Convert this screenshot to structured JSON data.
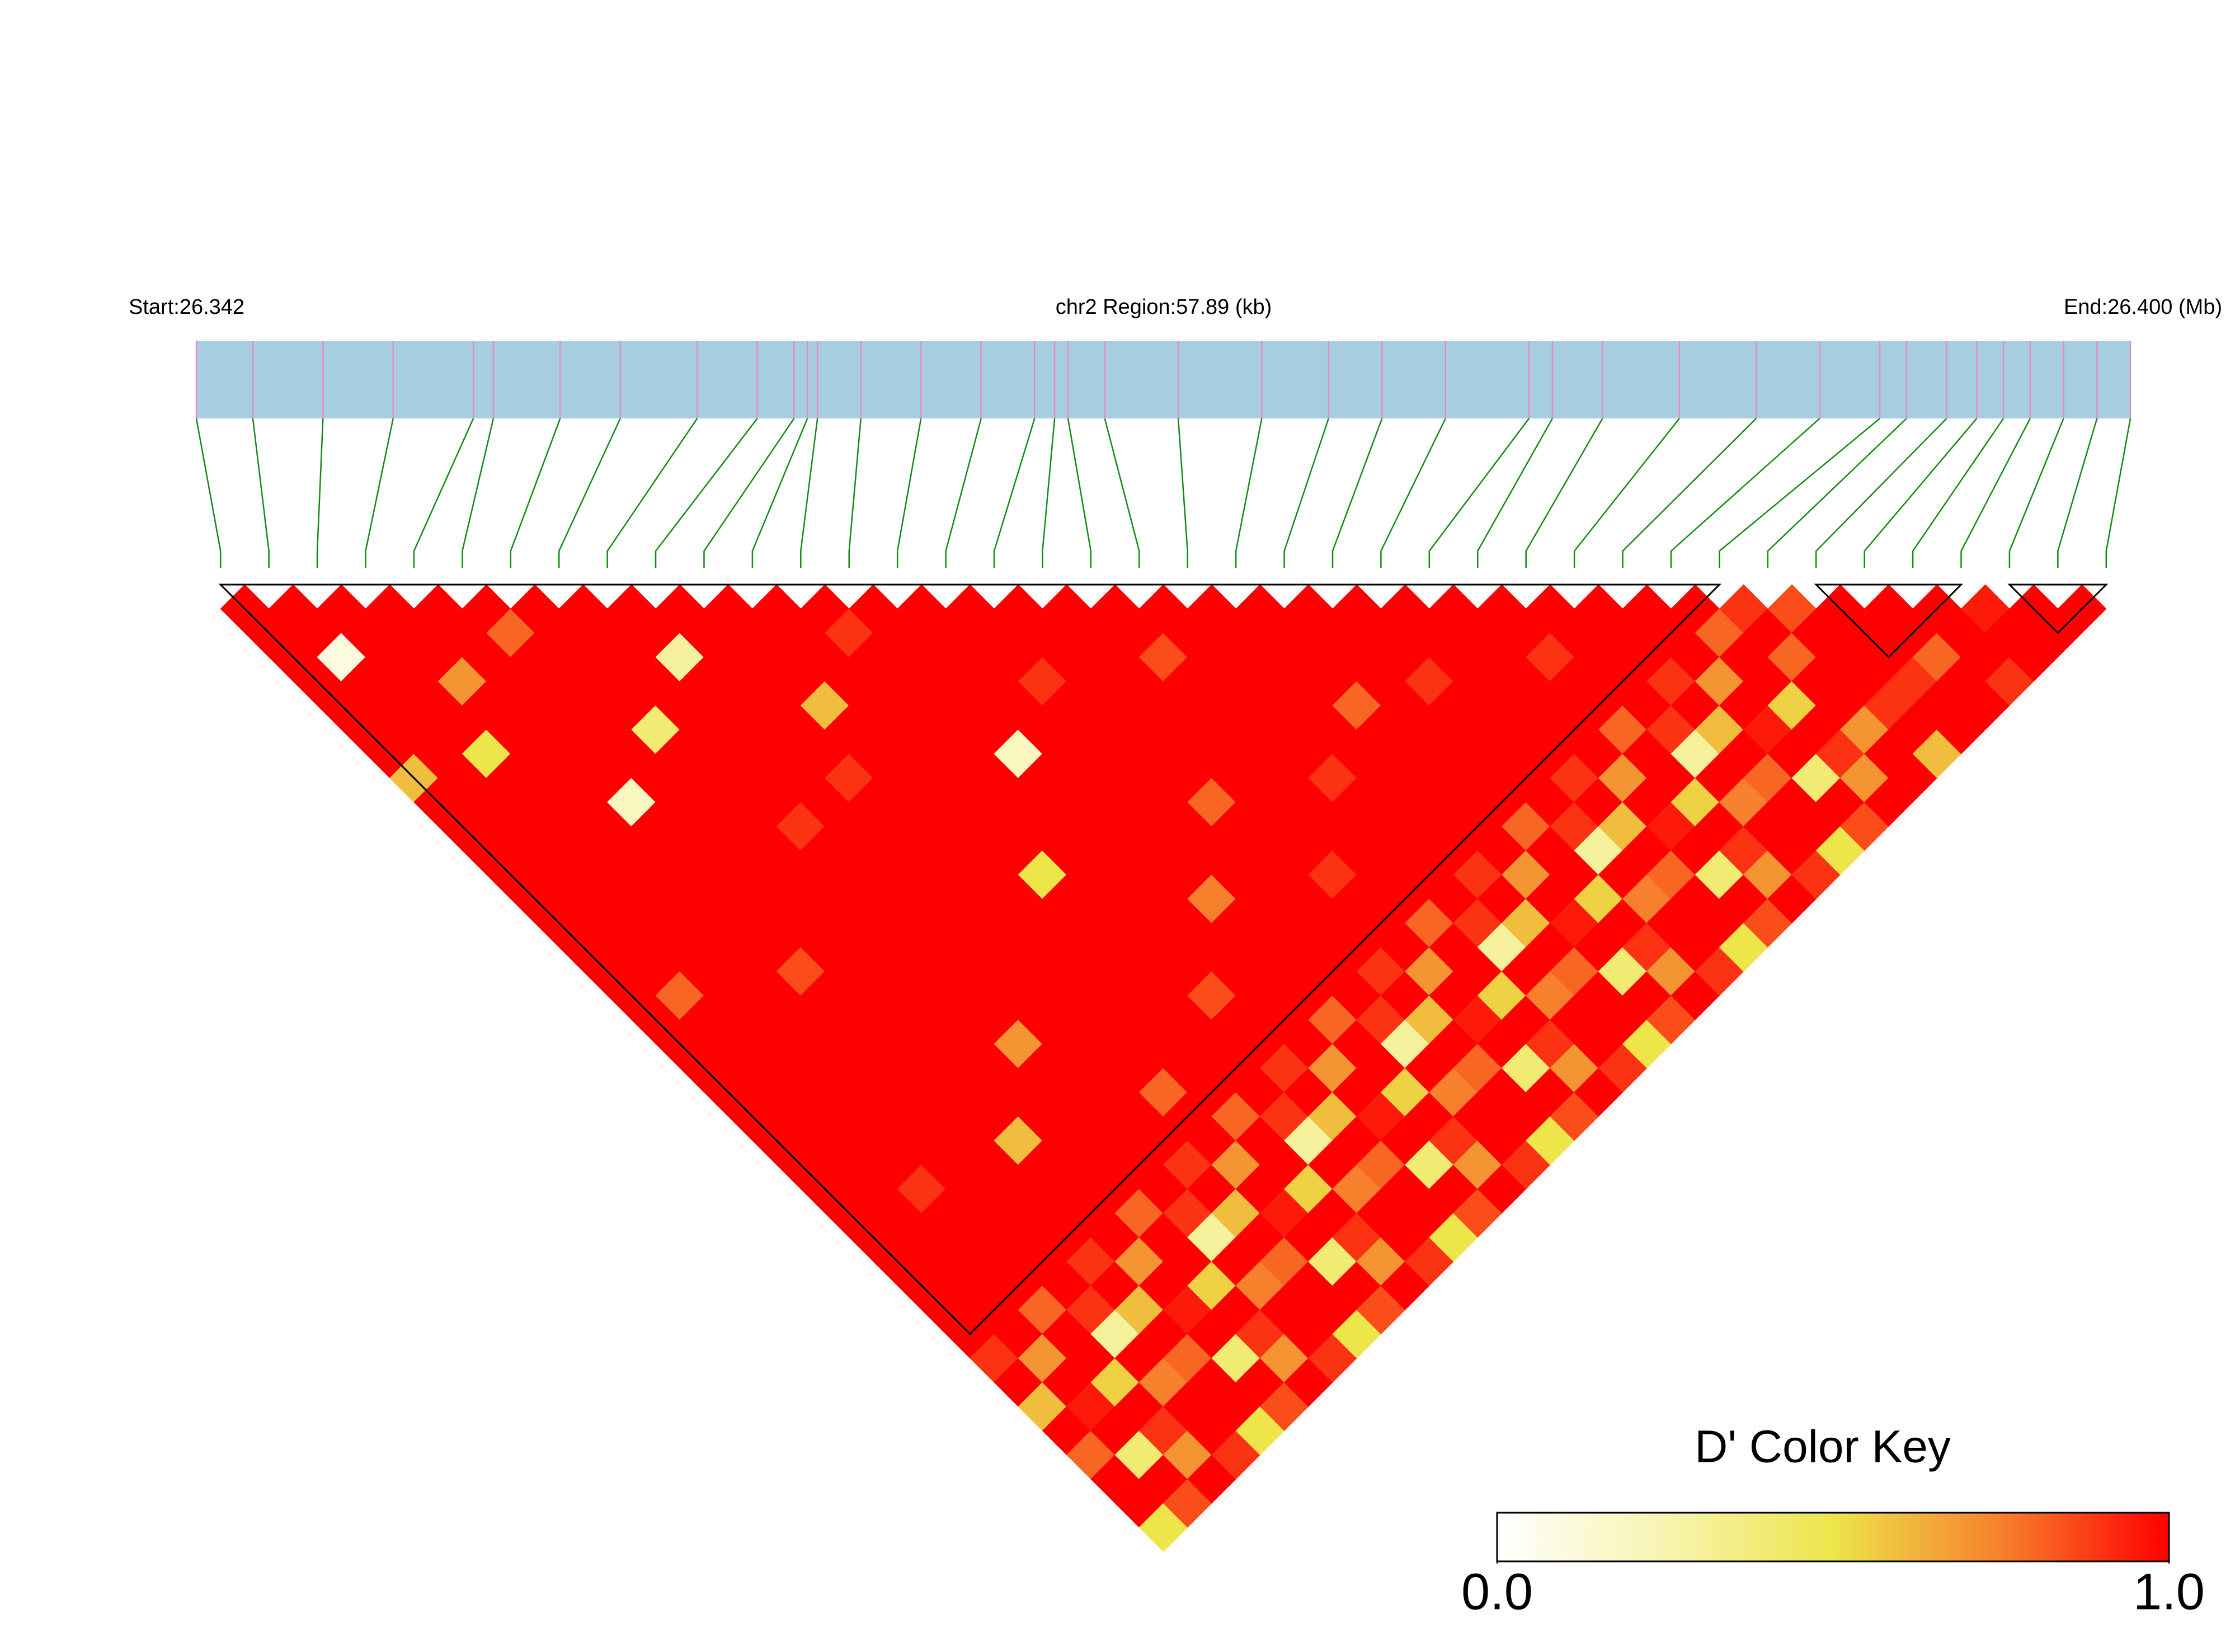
{
  "chart_data": {
    "type": "ld_heatmap",
    "start_label": "Start:26.342",
    "region_label": "chr2 Region:57.89 (kb)",
    "end_label": "End:26.400 (Mb)",
    "xlim": [
      26.34211,
      26.4
    ],
    "positions": [
      26.34211,
      26.3438,
      26.3459,
      26.348,
      26.3504,
      26.351,
      26.353,
      26.3548,
      26.3571,
      26.3589,
      26.36,
      26.3604,
      26.3607,
      26.362,
      26.3638,
      26.3656,
      26.3672,
      26.3678,
      26.3682,
      26.3693,
      26.3715,
      26.374,
      26.376,
      26.3776,
      26.3795,
      26.382,
      26.3827,
      26.3842,
      26.3865,
      26.3888,
      26.3907,
      26.3925,
      26.3933,
      26.3945,
      26.3954,
      26.3962,
      26.397,
      26.398,
      26.399,
      26.4
    ],
    "dprime": [
      [
        1,
        1,
        1,
        1,
        1,
        1,
        1,
        0.6,
        1,
        1,
        1,
        1,
        1,
        1,
        1,
        1,
        1,
        1,
        1,
        1,
        1,
        1,
        1,
        1,
        1,
        1,
        1,
        1,
        1,
        1,
        1,
        0.9,
        1,
        0.6,
        1,
        0.8,
        1,
        1,
        0.5
      ],
      [
        1,
        1,
        0.1,
        1,
        1,
        1,
        1,
        1,
        1,
        1,
        1,
        1,
        1,
        1,
        1,
        1,
        0.8,
        1,
        1,
        1,
        1,
        1,
        1,
        1,
        1,
        1,
        1,
        1,
        1,
        1,
        1,
        0.7,
        1,
        0.95,
        1,
        0.4,
        1,
        0.85
      ],
      [
        1,
        1,
        1,
        1,
        1,
        1,
        0.5,
        1,
        1,
        1,
        1,
        1,
        1,
        1,
        1,
        1,
        1,
        1,
        1,
        1,
        1,
        1,
        1,
        1,
        0.9,
        1,
        1,
        1,
        1,
        0.8,
        1,
        1,
        0.55,
        1,
        0.9,
        0.7,
        1
      ],
      [
        1,
        1,
        1,
        0.7,
        1,
        1,
        1,
        1,
        1,
        1,
        1,
        1,
        1,
        1,
        1,
        1,
        1,
        1,
        1,
        1,
        1,
        1,
        1,
        1,
        1,
        1,
        1,
        1,
        1,
        0.9,
        0.3,
        1,
        0.75,
        1,
        1,
        0.9
      ],
      [
        1,
        1,
        1,
        1,
        1,
        1,
        1,
        1,
        0.2,
        1,
        1,
        1,
        1,
        1,
        1,
        0.85,
        1,
        1,
        1,
        1,
        1,
        1,
        1,
        1,
        1,
        1,
        1,
        0.9,
        1,
        0.6,
        1,
        0.8,
        1,
        1,
        0.5
      ],
      [
        1,
        0.8,
        1,
        1,
        1,
        1,
        1,
        1,
        1,
        1,
        1,
        1,
        1,
        1,
        1,
        1,
        1,
        1,
        1,
        1,
        1,
        1,
        0.6,
        1,
        1,
        1,
        1,
        0.7,
        1,
        0.95,
        1,
        0.4,
        1,
        0.85
      ],
      [
        1,
        1,
        1,
        1,
        1,
        0.4,
        1,
        1,
        1,
        1,
        1,
        1,
        1,
        1,
        1,
        1,
        1,
        1,
        1,
        1,
        1,
        1,
        1,
        1,
        1,
        0.8,
        1,
        1,
        0.55,
        1,
        0.9,
        0.7,
        1
      ],
      [
        1,
        1,
        1,
        1,
        1,
        1,
        1,
        1,
        1,
        0.9,
        1,
        1,
        1,
        1,
        1,
        1,
        1,
        1,
        0.7,
        1,
        1,
        1,
        1,
        1,
        1,
        0.9,
        0.3,
        1,
        0.75,
        1,
        1,
        0.9
      ],
      [
        1,
        1,
        0.3,
        1,
        1,
        1,
        1,
        1,
        1,
        1,
        1,
        1,
        1,
        1,
        1,
        1,
        1,
        1,
        1,
        1,
        1,
        1,
        1,
        0.9,
        1,
        0.6,
        1,
        0.8,
        1,
        1,
        0.5
      ],
      [
        1,
        1,
        1,
        1,
        1,
        1,
        1,
        0.9,
        1,
        1,
        1,
        1,
        1,
        1,
        1,
        1,
        1,
        1,
        1,
        1,
        0.8,
        1,
        1,
        0.7,
        1,
        0.95,
        1,
        0.4,
        1,
        0.85
      ],
      [
        1,
        1,
        1,
        1,
        0.6,
        1,
        1,
        1,
        1,
        1,
        1,
        1,
        1,
        1,
        1,
        1,
        1,
        1,
        1,
        1,
        1,
        0.8,
        1,
        1,
        0.55,
        1,
        0.9,
        0.7,
        1
      ],
      [
        1,
        1,
        1,
        1,
        1,
        1,
        1,
        1,
        1,
        1,
        1,
        0.5,
        1,
        1,
        1,
        1,
        1,
        1,
        1,
        1,
        1,
        0.9,
        0.3,
        1,
        0.75,
        1,
        1,
        0.9
      ],
      [
        1,
        0.9,
        1,
        1,
        1,
        1,
        1,
        1,
        1,
        1,
        1,
        1,
        1,
        1,
        1,
        1,
        0.85,
        1,
        1,
        0.9,
        1,
        0.6,
        1,
        0.8,
        1,
        1,
        0.5
      ],
      [
        1,
        1,
        1,
        1,
        1,
        1,
        0.2,
        1,
        1,
        1,
        1,
        1,
        1,
        1,
        1,
        1,
        1,
        1,
        1,
        0.7,
        1,
        0.95,
        1,
        0.4,
        1,
        0.85
      ],
      [
        1,
        1,
        1,
        1,
        1,
        1,
        1,
        1,
        1,
        1,
        1,
        1,
        0.75,
        1,
        1,
        1,
        1,
        0.8,
        1,
        1,
        0.55,
        1,
        0.9,
        0.7,
        1
      ],
      [
        1,
        1,
        1,
        0.9,
        1,
        1,
        1,
        1,
        1,
        1,
        1,
        1,
        1,
        1,
        1,
        1,
        1,
        0.9,
        0.3,
        1,
        0.75,
        1,
        1,
        0.9
      ],
      [
        1,
        1,
        1,
        1,
        1,
        1,
        1,
        1,
        0.8,
        1,
        1,
        1,
        1,
        1,
        1,
        0.9,
        1,
        0.6,
        1,
        0.8,
        1,
        1,
        0.5
      ],
      [
        1,
        1,
        1,
        1,
        1,
        1,
        1,
        1,
        1,
        1,
        1,
        0.9,
        1,
        1,
        1,
        0.7,
        1,
        0.95,
        1,
        0.4,
        1,
        0.85
      ],
      [
        1,
        1,
        0.85,
        1,
        1,
        1,
        1,
        1,
        1,
        1,
        1,
        1,
        1,
        0.8,
        1,
        1,
        0.55,
        1,
        0.9,
        0.7,
        1
      ],
      [
        1,
        1,
        1,
        1,
        1,
        1,
        1,
        0.9,
        1,
        1,
        1,
        1,
        1,
        0.9,
        0.3,
        1,
        0.75,
        1,
        1,
        0.9
      ],
      [
        1,
        1,
        1,
        1,
        1,
        1,
        1,
        1,
        1,
        1,
        1,
        0.9,
        1,
        0.6,
        1,
        0.8,
        1,
        1,
        0.5
      ],
      [
        1,
        1,
        1,
        1,
        0.8,
        1,
        1,
        1,
        1,
        1,
        1,
        0.7,
        1,
        0.95,
        1,
        0.4,
        1,
        0.85
      ],
      [
        1,
        1,
        1,
        1,
        1,
        1,
        1,
        1,
        1,
        0.8,
        1,
        1,
        0.55,
        1,
        0.9,
        0.7,
        1
      ],
      [
        1,
        1,
        1,
        0.9,
        1,
        1,
        1,
        1,
        1,
        0.9,
        0.3,
        1,
        0.75,
        1,
        1,
        0.9
      ],
      [
        1,
        1,
        1,
        1,
        1,
        1,
        1,
        0.9,
        1,
        0.6,
        1,
        0.8,
        1,
        1,
        0.5
      ],
      [
        1,
        1,
        1,
        1,
        1,
        1,
        1,
        0.7,
        1,
        0.95,
        1,
        0.4,
        1,
        0.85
      ],
      [
        1,
        1,
        0.9,
        1,
        1,
        0.8,
        1,
        1,
        0.55,
        1,
        0.9,
        0.7,
        1
      ],
      [
        1,
        1,
        1,
        1,
        1,
        0.9,
        0.3,
        1,
        0.75,
        1,
        1,
        0.9
      ],
      [
        1,
        1,
        1,
        0.9,
        1,
        0.6,
        1,
        0.8,
        1,
        1,
        0.5
      ],
      [
        1,
        1,
        1,
        0.7,
        1,
        0.95,
        1,
        0.4,
        1,
        0.85
      ],
      [
        1,
        0.8,
        1,
        1,
        0.55,
        1,
        0.9,
        0.7,
        1
      ],
      [
        0.9,
        1,
        0.8,
        1,
        1,
        0.7,
        1,
        1
      ],
      [
        0.85,
        1,
        1,
        1,
        0.9,
        1,
        0.6
      ],
      [
        1,
        1,
        1,
        0.9,
        1,
        1
      ],
      [
        1,
        1,
        0.8,
        1,
        1
      ],
      [
        1,
        1,
        1,
        0.9
      ],
      [
        0.95,
        1,
        1
      ],
      [
        1,
        1
      ],
      [
        1
      ]
    ],
    "blocks": [
      [
        0,
        31
      ],
      [
        33,
        36
      ],
      [
        37,
        39
      ]
    ],
    "colorkey": {
      "title": "D' Color Key",
      "range": [
        0,
        1
      ],
      "ticks": [
        {
          "value": 0,
          "label": "0.0"
        },
        {
          "value": 1,
          "label": "1.0"
        }
      ],
      "colors": [
        "#ffffff",
        "#f8f4b0",
        "#ede54a",
        "#f7802c",
        "#ff0000"
      ]
    },
    "bar_color": "#a6cde0",
    "snp_line_color": "#e88bc4",
    "link_color": "#138a13"
  }
}
